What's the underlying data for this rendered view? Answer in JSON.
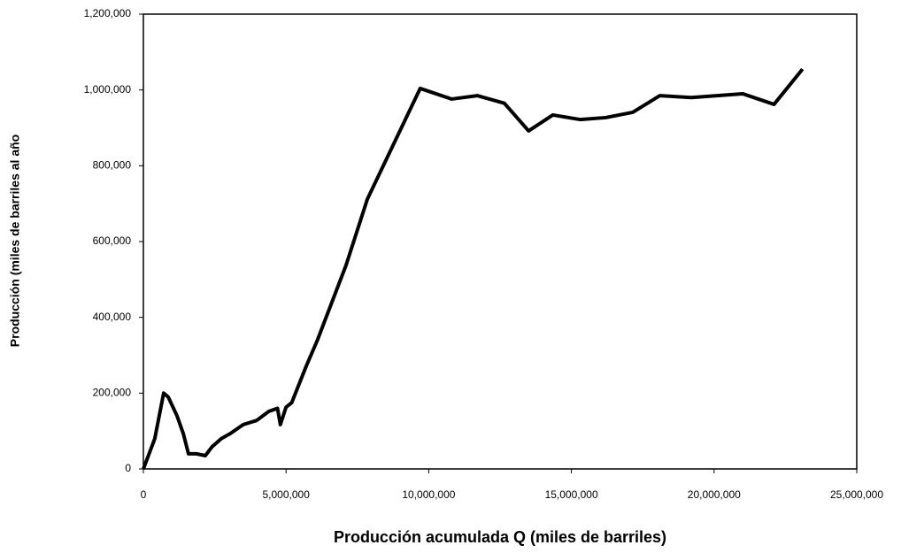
{
  "chart_data": {
    "type": "line",
    "xlabel": "Producción acumulada Q (miles de barriles)",
    "ylabel": "Producción (miles de barriles al año",
    "x": [
      0,
      400000,
      710000,
      870000,
      1180000,
      1400000,
      1580000,
      1860000,
      2170000,
      2400000,
      2730000,
      3040000,
      3500000,
      3970000,
      4400000,
      4700000,
      4800000,
      5000000,
      5200000,
      5700000,
      6100000,
      7100000,
      7850000,
      9700000,
      10800000,
      11700000,
      12650000,
      13500000,
      14350000,
      15300000,
      16200000,
      17150000,
      18100000,
      19200000,
      21000000,
      22100000,
      23100000
    ],
    "series": [
      {
        "name": "Producción",
        "color": "#000000",
        "values": [
          0,
          80000,
          200000,
          190000,
          140000,
          93000,
          40000,
          40000,
          35000,
          58000,
          80000,
          93000,
          117000,
          128000,
          152000,
          160000,
          117000,
          163000,
          175000,
          270000,
          340000,
          537000,
          712000,
          1004000,
          976000,
          985000,
          965000,
          892000,
          934000,
          922000,
          927000,
          941000,
          985000,
          980000,
          990000,
          962000,
          1055000
        ]
      }
    ],
    "xlim": [
      0,
      25000000
    ],
    "xticks": [
      0,
      {
        "value": 5000000,
        "label": "5,000,000"
      },
      {
        "value": 10000000,
        "label": "10,000,000"
      },
      {
        "value": 15000000,
        "label": "15,000,000"
      },
      {
        "value": 20000000,
        "label": "20,000,000"
      },
      {
        "value": 25000000,
        "label": "25,000,000"
      }
    ],
    "ylim": [
      0,
      1200000
    ],
    "yticks": [
      0,
      {
        "value": 200000,
        "label": "200,000"
      },
      {
        "value": 400000,
        "label": "400,000"
      },
      {
        "value": 600000,
        "label": "600,000"
      },
      {
        "value": 800000,
        "label": "800,000"
      },
      {
        "value": 1000000,
        "label": "1,000,000"
      },
      {
        "value": 1200000,
        "label": "1,200,000"
      }
    ],
    "grid": false
  }
}
